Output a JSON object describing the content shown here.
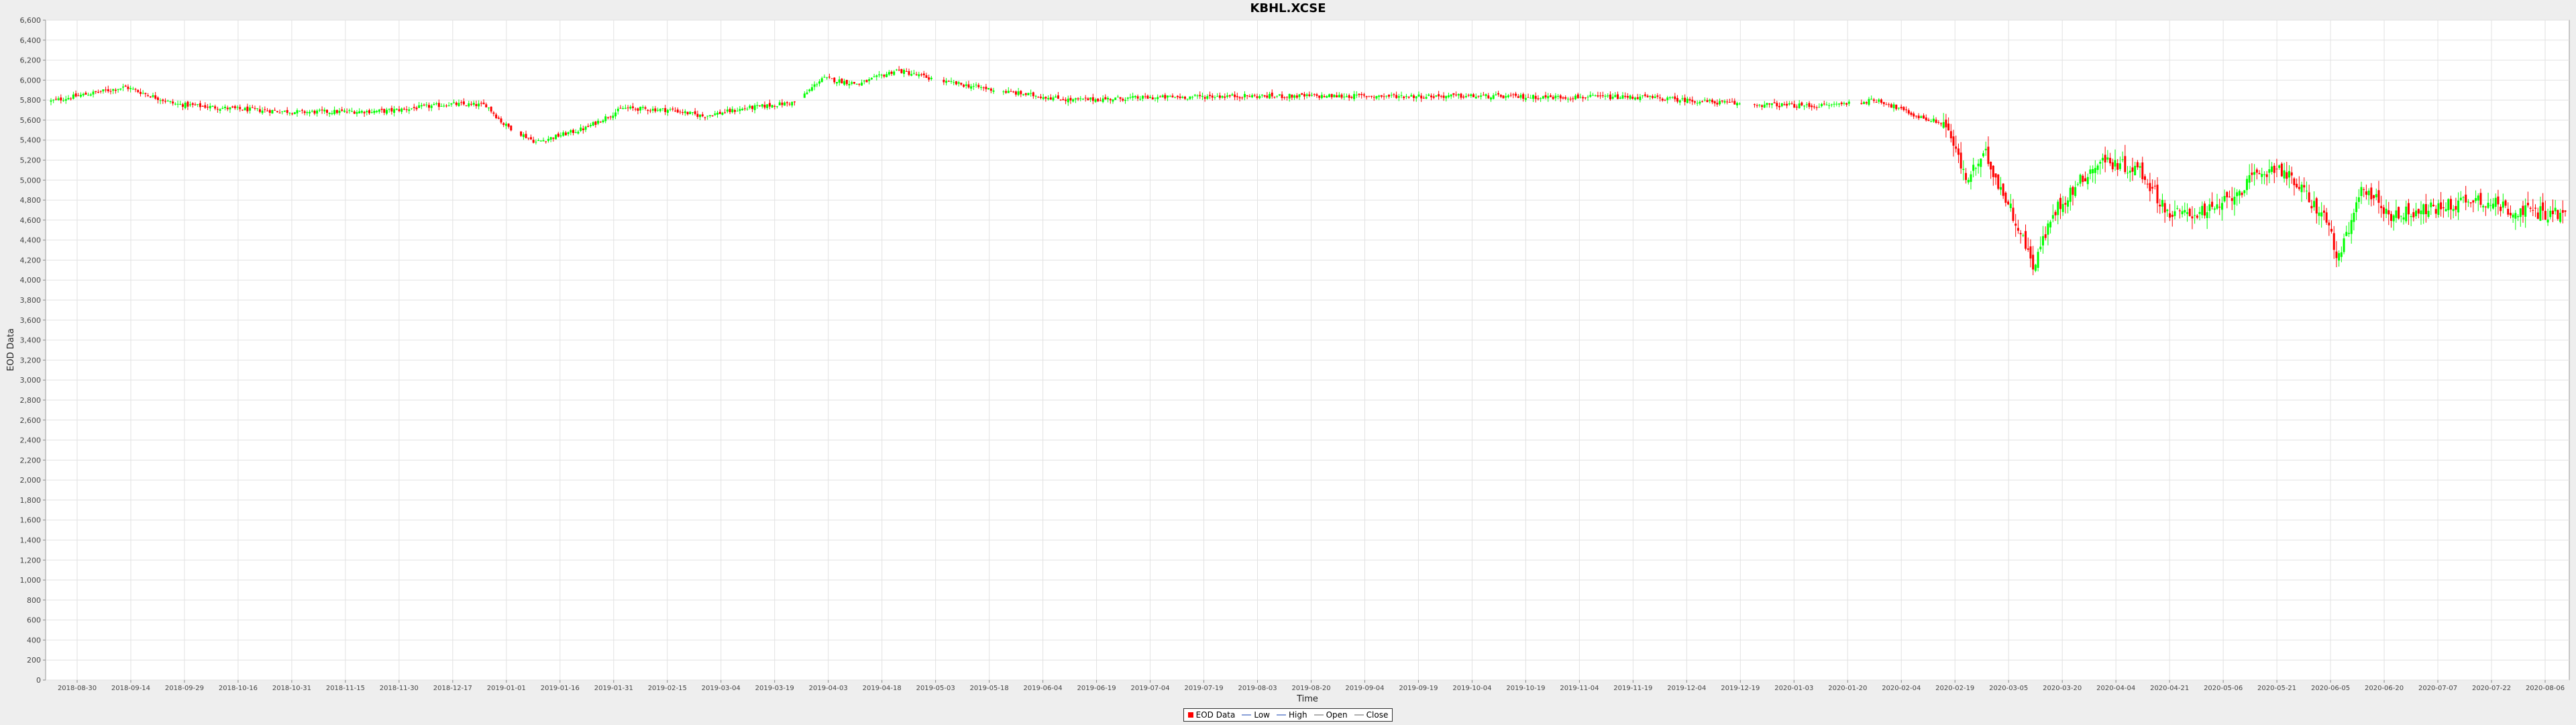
{
  "chart_data": {
    "type": "candlestick",
    "title": "KBHL.XCSE",
    "xlabel": "Time",
    "ylabel": "EOD Data",
    "ylim": [
      0,
      6600
    ],
    "yticks": [
      0,
      200,
      400,
      600,
      800,
      1000,
      1200,
      1400,
      1600,
      1800,
      2000,
      2200,
      2400,
      2600,
      2800,
      3000,
      3200,
      3400,
      3600,
      3800,
      4000,
      4200,
      4400,
      4600,
      4800,
      5000,
      5200,
      5400,
      5600,
      5800,
      6000,
      6200,
      6400,
      6600
    ],
    "x_tick_labels": [
      "2018-08-30",
      "2018-09-14",
      "2018-09-29",
      "2018-10-16",
      "2018-10-31",
      "2018-11-15",
      "2018-11-30",
      "2018-12-17",
      "2019-01-01",
      "2019-01-16",
      "2019-01-31",
      "2019-02-15",
      "2019-03-04",
      "2019-03-19",
      "2019-04-03",
      "2019-04-18",
      "2019-05-03",
      "2019-05-18",
      "2019-06-04",
      "2019-06-19",
      "2019-07-04",
      "2019-07-19",
      "2019-08-03",
      "2019-08-20",
      "2019-09-04",
      "2019-09-19",
      "2019-10-04",
      "2019-10-19",
      "2019-11-04",
      "2019-11-19",
      "2019-12-04",
      "2019-12-19",
      "2020-01-03",
      "2020-01-20",
      "2020-02-04",
      "2020-02-19",
      "2020-03-05",
      "2020-03-20",
      "2020-04-04",
      "2020-04-21",
      "2020-05-06",
      "2020-05-21",
      "2020-06-05",
      "2020-06-20",
      "2020-07-07",
      "2020-07-22",
      "2020-08-06"
    ],
    "grid": true,
    "legend_position": "bottom-center",
    "colors": {
      "up": "#00ff00",
      "down": "#ff0000",
      "low_high": "#2f4f9f",
      "plot_bg": "#ffffff",
      "grid": "#e2e2e2"
    },
    "anchors": [
      {
        "i": 0,
        "c": 5790
      },
      {
        "i": 10,
        "c": 5840
      },
      {
        "i": 30,
        "c": 5930
      },
      {
        "i": 50,
        "c": 5760
      },
      {
        "i": 75,
        "c": 5710
      },
      {
        "i": 100,
        "c": 5680
      },
      {
        "i": 135,
        "c": 5690
      },
      {
        "i": 160,
        "c": 5760
      },
      {
        "i": 175,
        "c": 5750
      },
      {
        "i": 182,
        "c": 5560
      },
      {
        "i": 195,
        "c": 5380
      },
      {
        "i": 215,
        "c": 5520
      },
      {
        "i": 230,
        "c": 5720
      },
      {
        "i": 250,
        "c": 5700
      },
      {
        "i": 262,
        "c": 5640
      },
      {
        "i": 280,
        "c": 5720
      },
      {
        "i": 300,
        "c": 5780
      },
      {
        "i": 310,
        "c": 6020
      },
      {
        "i": 325,
        "c": 5960
      },
      {
        "i": 340,
        "c": 6100
      },
      {
        "i": 360,
        "c": 5980
      },
      {
        "i": 385,
        "c": 5880
      },
      {
        "i": 410,
        "c": 5800
      },
      {
        "i": 435,
        "c": 5820
      },
      {
        "i": 470,
        "c": 5840
      },
      {
        "i": 520,
        "c": 5840
      },
      {
        "i": 570,
        "c": 5840
      },
      {
        "i": 600,
        "c": 5830
      },
      {
        "i": 640,
        "c": 5830
      },
      {
        "i": 680,
        "c": 5760
      },
      {
        "i": 710,
        "c": 5740
      },
      {
        "i": 735,
        "c": 5800
      },
      {
        "i": 750,
        "c": 5640
      },
      {
        "i": 762,
        "c": 5560
      },
      {
        "i": 770,
        "c": 5000
      },
      {
        "i": 778,
        "c": 5250
      },
      {
        "i": 790,
        "c": 4600
      },
      {
        "i": 797,
        "c": 4150
      },
      {
        "i": 806,
        "c": 4700
      },
      {
        "i": 818,
        "c": 5050
      },
      {
        "i": 825,
        "c": 5200
      },
      {
        "i": 840,
        "c": 5100
      },
      {
        "i": 852,
        "c": 4650
      },
      {
        "i": 870,
        "c": 4700
      },
      {
        "i": 885,
        "c": 5000
      },
      {
        "i": 895,
        "c": 5150
      },
      {
        "i": 905,
        "c": 4900
      },
      {
        "i": 915,
        "c": 4600
      },
      {
        "i": 920,
        "c": 4200
      },
      {
        "i": 930,
        "c": 4950
      },
      {
        "i": 940,
        "c": 4650
      },
      {
        "i": 960,
        "c": 4720
      },
      {
        "i": 975,
        "c": 4820
      },
      {
        "i": 990,
        "c": 4700
      },
      {
        "i": 1010,
        "c": 4660
      }
    ],
    "gaps": [
      [
        186,
        188
      ],
      [
        300,
        302
      ],
      [
        355,
        358
      ],
      [
        380,
        382
      ],
      [
        680,
        684
      ],
      [
        724,
        727
      ]
    ],
    "n_points": 1012
  }
}
